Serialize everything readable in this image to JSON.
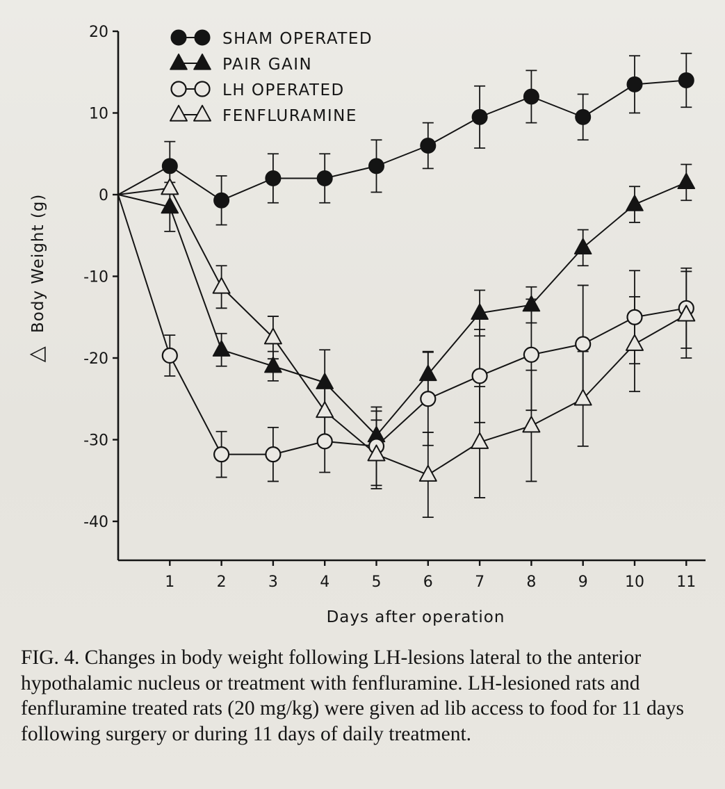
{
  "chart_data": {
    "type": "line",
    "title": "",
    "xlabel": "Days after operation",
    "ylabel": "Body Weight (g)",
    "ylabel_symbol": "△",
    "x": [
      0,
      1,
      2,
      3,
      4,
      5,
      6,
      7,
      8,
      9,
      10,
      11
    ],
    "x_tick_labels": [
      "1",
      "2",
      "3",
      "4",
      "5",
      "6",
      "7",
      "8",
      "9",
      "10",
      "11"
    ],
    "xlim": [
      0,
      11.3
    ],
    "ylim": [
      -45,
      20
    ],
    "y_ticks": [
      20,
      10,
      0,
      -10,
      -20,
      -30,
      -40
    ],
    "y_tick_labels": [
      "20",
      "10",
      "0",
      "-10",
      "-20",
      "-30",
      "-40"
    ],
    "grid": false,
    "legend_position": "top-left",
    "series": [
      {
        "name": "SHAM OPERATED",
        "marker": "filled-circle",
        "values": [
          0,
          3.5,
          -0.7,
          2,
          2,
          3.5,
          6,
          9.5,
          12,
          9.5,
          13.5,
          14
        ],
        "error": [
          0,
          3,
          3,
          3,
          3,
          3.2,
          2.8,
          3.8,
          3.2,
          2.8,
          3.5,
          3.3
        ]
      },
      {
        "name": "PAIR GAIN",
        "marker": "filled-triangle",
        "values": [
          0,
          -1.5,
          -19,
          -21,
          -23,
          -29.5,
          -22,
          -14.5,
          -13.5,
          -6.5,
          -1.2,
          1.5
        ],
        "error": [
          0,
          3,
          2,
          1.8,
          4,
          3,
          2.8,
          2.8,
          2.2,
          2.2,
          2.2,
          2.2
        ]
      },
      {
        "name": "LH OPERATED",
        "marker": "open-circle",
        "values": [
          0,
          -19.7,
          -31.8,
          -31.8,
          -30.2,
          -30.8,
          -25,
          -22.2,
          -19.6,
          -18.3,
          -15,
          -13.9
        ],
        "error": [
          0,
          2.5,
          2.8,
          3.3,
          3.8,
          4.8,
          5.7,
          5.7,
          6.8,
          7.2,
          5.7,
          4.9
        ]
      },
      {
        "name": "FENFLURAMINE",
        "marker": "open-triangle",
        "values": [
          0,
          0.8,
          -11.3,
          -17.5,
          -26.5,
          -31.8,
          -34.3,
          -30.3,
          -28.3,
          -25,
          -18.3,
          -14.7
        ],
        "error": [
          0,
          0,
          2.6,
          2.6,
          3.4,
          4.2,
          5.2,
          6.8,
          6.8,
          5.8,
          5.8,
          5.3
        ]
      }
    ]
  },
  "caption": "FIG. 4. Changes in body weight following LH-lesions lateral to the anterior hypothalamic nucleus or treatment with fenfluramine. LH-lesioned rats and fenfluramine treated rats (20 mg/kg) were given ad lib access to food for 11 days following surgery or during 11 days of daily treatment.",
  "colors": {
    "ink": "#141414",
    "paper": "#eae8e3"
  }
}
